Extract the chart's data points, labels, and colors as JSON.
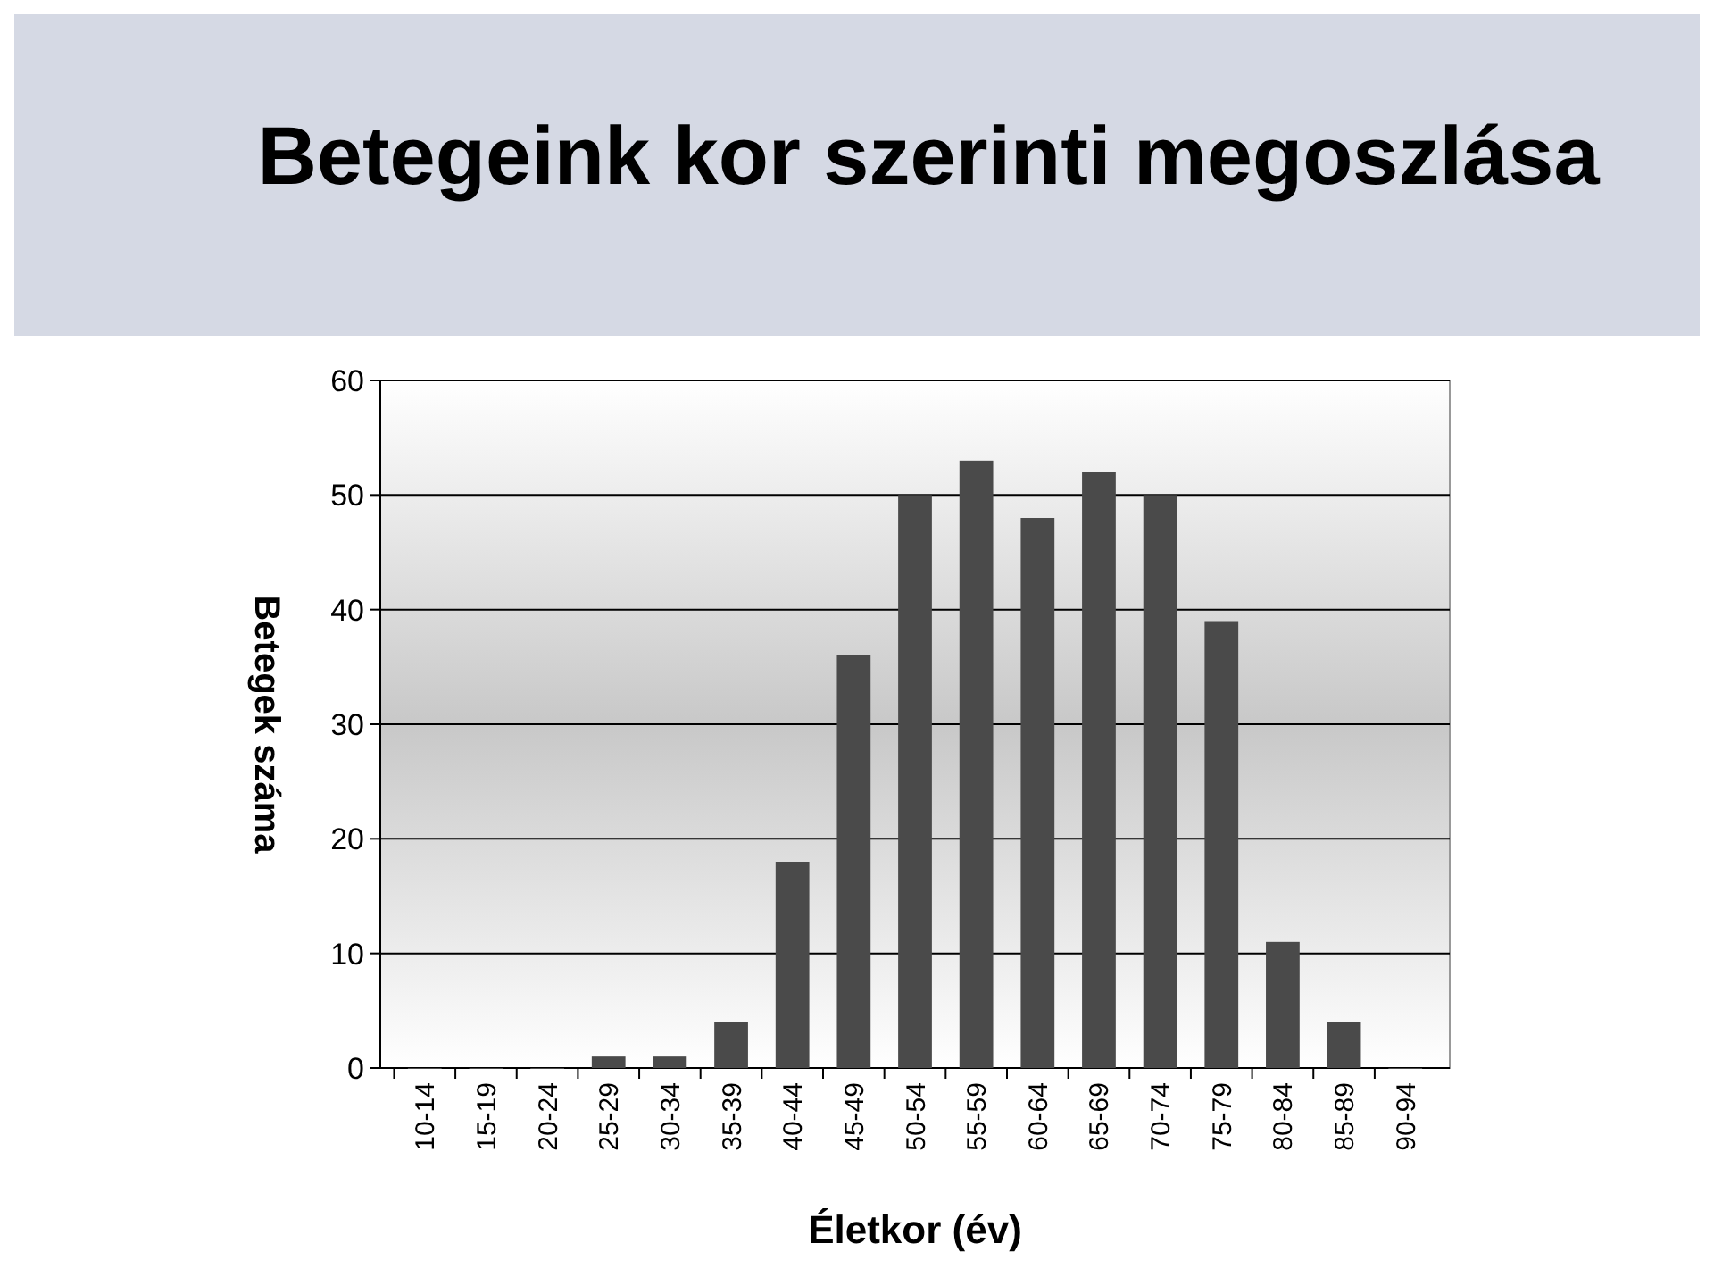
{
  "chart_data": {
    "type": "bar",
    "title": "Betegeink kor szerinti megoszlása",
    "xlabel": "Életkor (év)",
    "ylabel": "Betegek száma",
    "categories": [
      "10-14",
      "15-19",
      "20-24",
      "25-29",
      "30-34",
      "35-39",
      "40-44",
      "45-49",
      "50-54",
      "55-59",
      "60-64",
      "65-69",
      "70-74",
      "75-79",
      "80-84",
      "85-89",
      "90-94"
    ],
    "values": [
      0,
      0,
      0,
      1,
      1,
      4,
      18,
      36,
      50,
      53,
      48,
      52,
      50,
      39,
      11,
      4,
      0
    ],
    "color": "#4a4a4a",
    "ylim": [
      0,
      60
    ],
    "yticks": [
      0,
      10,
      20,
      30,
      40,
      50,
      60
    ],
    "grid": true
  }
}
